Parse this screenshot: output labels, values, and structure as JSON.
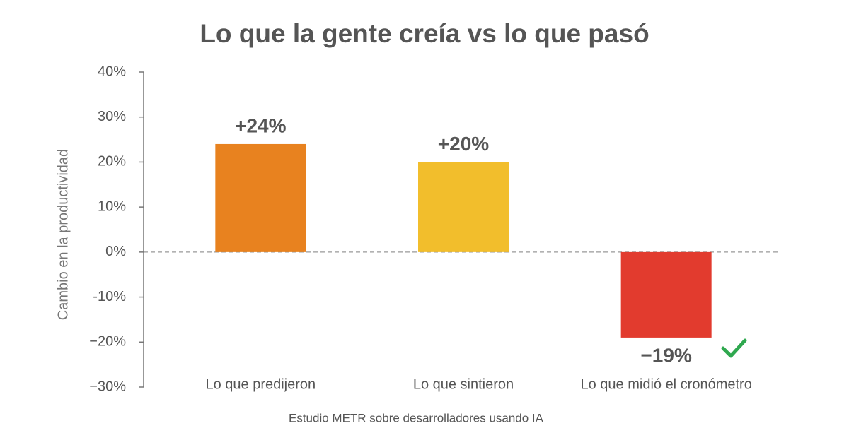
{
  "chart_data": {
    "type": "bar",
    "title": "Lo que la gente creía vs lo que pasó",
    "y_label": "Cambio en la productividad",
    "source": "Estudio METR sobre desarrolladores usando IA",
    "categories": [
      "Lo que predijeron",
      "Lo que sintieron",
      "Lo que midió el cronómetro"
    ],
    "values": [
      24,
      20,
      -19
    ],
    "value_labels": [
      "+24%",
      "+20%",
      "−19%"
    ],
    "colors": [
      "#e8821f",
      "#f2be2c",
      "#e23b2e"
    ],
    "ylim": [
      -30,
      40
    ],
    "yticks": [
      {
        "value": 40,
        "label": "40%"
      },
      {
        "value": 30,
        "label": "30%"
      },
      {
        "value": 20,
        "label": "20%"
      },
      {
        "value": 10,
        "label": "10%"
      },
      {
        "value": 0,
        "label": "0%"
      },
      {
        "value": -10,
        "label": "-10%"
      },
      {
        "value": -20,
        "label": "−20%"
      },
      {
        "value": -30,
        "label": "−30%"
      }
    ],
    "zero_line": true
  }
}
